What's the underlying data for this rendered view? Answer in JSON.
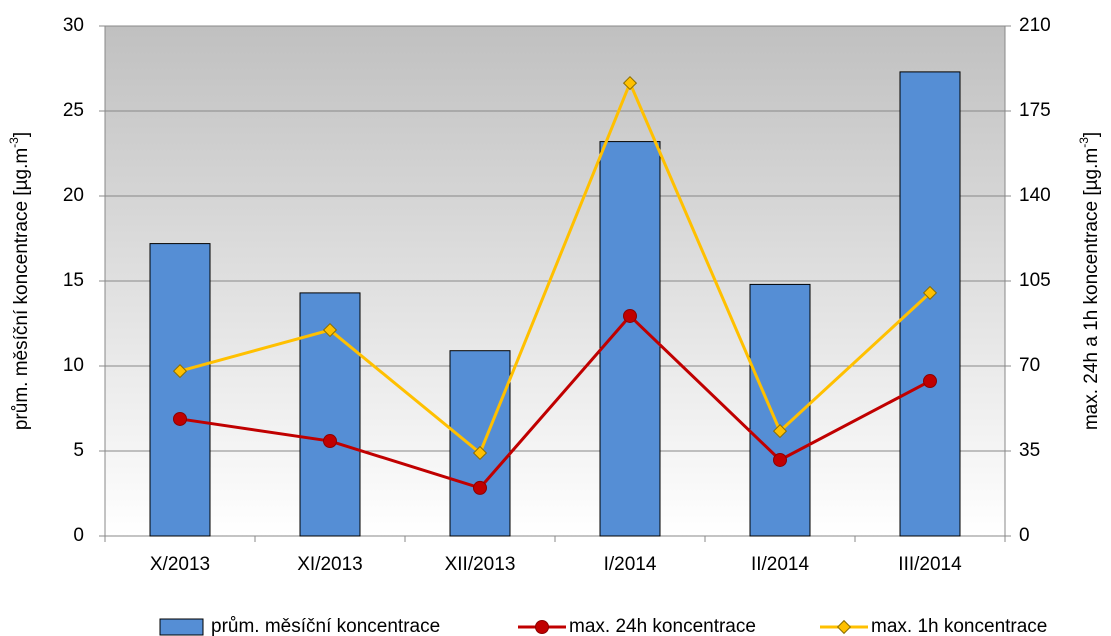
{
  "chart_data": {
    "type": "bar",
    "categories": [
      "X/2013",
      "XI/2013",
      "XII/2013",
      "I/2014",
      "II/2014",
      "III/2014"
    ],
    "ylabel": [
      "prům. měsíční koncentrace [µg.m",
      "-3",
      "]"
    ],
    "y2label": [
      "max. 24h a 1h koncentrace [µg.m",
      "-3",
      "]"
    ],
    "ylim": [
      0,
      30
    ],
    "yticks": [
      0,
      5,
      10,
      15,
      20,
      25,
      30
    ],
    "y2lim": [
      0,
      210
    ],
    "y2ticks": [
      0,
      35,
      70,
      105,
      140,
      175,
      210
    ],
    "grid": true,
    "legend": "bottom",
    "series": [
      {
        "name": "prům. měsíční koncentrace",
        "type": "bar",
        "color": "#558ed5",
        "values": [
          17.2,
          14.3,
          10.9,
          23.2,
          14.8,
          27.3
        ]
      },
      {
        "name": "max. 24h koncentrace",
        "type": "line",
        "marker": "circle",
        "axis": "y2",
        "color": "#c00000",
        "values": [
          48.2,
          39.1,
          19.8,
          90.6,
          31.3,
          63.8
        ]
      },
      {
        "name": "max. 1h koncentrace",
        "type": "line",
        "marker": "diamond",
        "axis": "y2",
        "color": "#ffc000",
        "values": [
          67.9,
          84.8,
          34.2,
          186.5,
          43.2,
          100.1
        ]
      }
    ]
  }
}
